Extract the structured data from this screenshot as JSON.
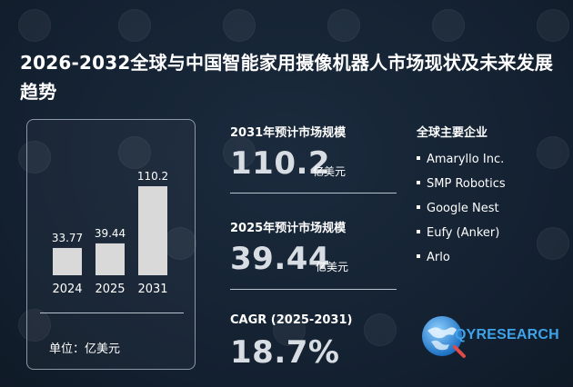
{
  "title": "2026-2032全球与中国智能家用摄像机器人市场现状及未来发展趋势",
  "chart_data": {
    "type": "bar",
    "categories": [
      "2024",
      "2025",
      "2031"
    ],
    "values": [
      33.77,
      39.44,
      110.2
    ],
    "value_labels": [
      "33.77",
      "39.44",
      "110.2"
    ],
    "unit_label": "单位：亿美元",
    "bar_color": "#d9d9d9"
  },
  "stats": {
    "s2031": {
      "label": "2031年预计市场规模",
      "value": "110.2",
      "unit": "亿美元"
    },
    "s2025": {
      "label": "2025年预计市场规模",
      "value": "39.44",
      "unit": "亿美元"
    },
    "cagr": {
      "label": "CAGR (2025-2031)",
      "value": "18.7%"
    }
  },
  "companies": {
    "title": "全球主要企业",
    "items": [
      "Amaryllo Inc.",
      "SMP Robotics",
      "Google Nest",
      "Eufy (Anker)",
      "Arlo"
    ]
  },
  "logo": {
    "text": "QYRESEARCH",
    "icon": "globe-icon"
  },
  "colors": {
    "background": "#142130",
    "accent": "#3ea3e8",
    "value_text": "#d8dde3"
  }
}
